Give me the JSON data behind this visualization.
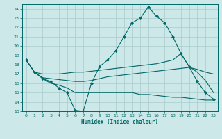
{
  "xlabel": "Humidex (Indice chaleur)",
  "background_color": "#cce8e8",
  "grid_color": "#aacccc",
  "line_color": "#006666",
  "xlim": [
    -0.5,
    23.5
  ],
  "ylim": [
    13,
    24.5
  ],
  "yticks": [
    13,
    14,
    15,
    16,
    17,
    18,
    19,
    20,
    21,
    22,
    23,
    24
  ],
  "xticks": [
    0,
    1,
    2,
    3,
    4,
    5,
    6,
    7,
    8,
    9,
    10,
    11,
    12,
    13,
    14,
    15,
    16,
    17,
    18,
    19,
    20,
    21,
    22,
    23
  ],
  "line_main_x": [
    0,
    1,
    2,
    3,
    4,
    5,
    6,
    7,
    8,
    9,
    10,
    11,
    12,
    13,
    14,
    15,
    16,
    17,
    18,
    19,
    20,
    21,
    22,
    23
  ],
  "line_main_y": [
    18.5,
    17.2,
    16.5,
    16.2,
    15.5,
    15.0,
    13.1,
    13.0,
    16.0,
    17.8,
    18.5,
    19.5,
    21.0,
    22.5,
    23.0,
    24.2,
    23.2,
    22.5,
    21.0,
    19.2,
    17.8,
    16.2,
    15.0,
    14.3
  ],
  "line_upper_x": [
    0,
    1,
    2,
    3,
    4,
    5,
    6,
    7,
    8,
    9,
    10,
    11,
    12,
    13,
    14,
    15,
    16,
    17,
    18,
    19,
    20,
    21,
    22,
    23
  ],
  "line_upper_y": [
    18.5,
    17.2,
    17.0,
    17.0,
    17.0,
    17.1,
    17.2,
    17.2,
    17.3,
    17.4,
    17.5,
    17.6,
    17.7,
    17.8,
    17.9,
    18.0,
    18.1,
    18.3,
    18.5,
    19.2,
    17.8,
    17.2,
    16.3,
    15.0
  ],
  "line_mid_x": [
    0,
    1,
    2,
    3,
    4,
    5,
    6,
    7,
    8,
    9,
    10,
    11,
    12,
    13,
    14,
    15,
    16,
    17,
    18,
    19,
    20,
    21,
    22,
    23
  ],
  "line_mid_y": [
    18.5,
    17.2,
    16.6,
    16.5,
    16.4,
    16.3,
    16.2,
    16.2,
    16.3,
    16.5,
    16.7,
    16.8,
    16.9,
    17.0,
    17.1,
    17.2,
    17.3,
    17.4,
    17.5,
    17.6,
    17.7,
    17.5,
    17.2,
    17.0
  ],
  "line_lower_x": [
    2,
    3,
    4,
    5,
    6,
    7,
    8,
    9,
    10,
    11,
    12,
    13,
    14,
    15,
    16,
    17,
    18,
    19,
    20,
    21,
    22,
    23
  ],
  "line_lower_y": [
    16.5,
    16.0,
    15.8,
    15.5,
    15.0,
    15.0,
    15.0,
    15.0,
    15.0,
    15.0,
    15.0,
    15.0,
    14.8,
    14.8,
    14.7,
    14.6,
    14.5,
    14.5,
    14.4,
    14.3,
    14.2,
    14.2
  ]
}
